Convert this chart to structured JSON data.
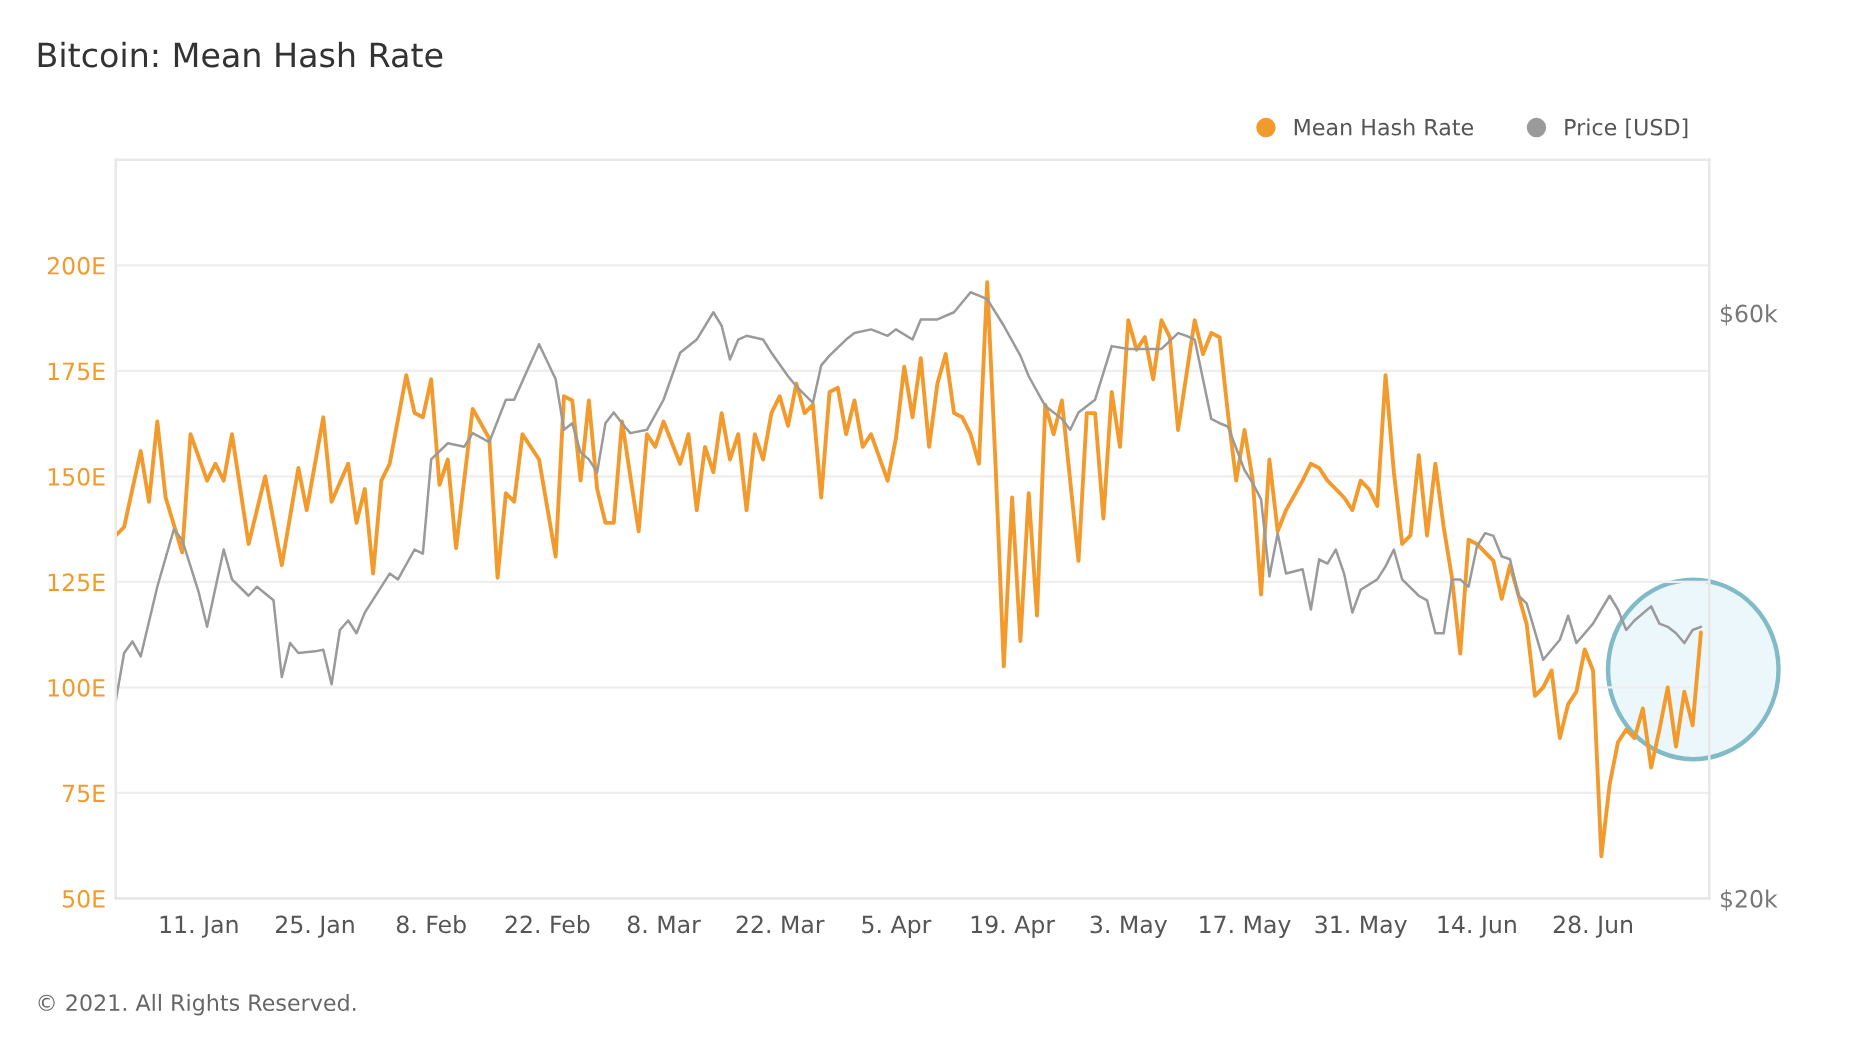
{
  "chart_data": {
    "type": "line",
    "title": "Bitcoin: Mean Hash Rate",
    "annotations": [
      "© 2021. All Rights Reserved."
    ],
    "xlim": [
      "2021-01-01",
      "2021-07-12"
    ],
    "xticks": [
      {
        "value": "2021-01-11",
        "label": "11. Jan"
      },
      {
        "value": "2021-01-25",
        "label": "25. Jan"
      },
      {
        "value": "2021-02-08",
        "label": "8. Feb"
      },
      {
        "value": "2021-02-22",
        "label": "22. Feb"
      },
      {
        "value": "2021-03-08",
        "label": "8. Mar"
      },
      {
        "value": "2021-03-22",
        "label": "22. Mar"
      },
      {
        "value": "2021-04-05",
        "label": "5. Apr"
      },
      {
        "value": "2021-04-19",
        "label": "19. Apr"
      },
      {
        "value": "2021-05-03",
        "label": "3. May"
      },
      {
        "value": "2021-05-17",
        "label": "17. May"
      },
      {
        "value": "2021-05-31",
        "label": "31. May"
      },
      {
        "value": "2021-06-14",
        "label": "14. Jun"
      },
      {
        "value": "2021-06-28",
        "label": "28. Jun"
      }
    ],
    "ylim": [
      50,
      225
    ],
    "yticks": [
      {
        "value": 50,
        "label": "50E"
      },
      {
        "value": 75,
        "label": "75E"
      },
      {
        "value": 100,
        "label": "100E"
      },
      {
        "value": 125,
        "label": "125E"
      },
      {
        "value": 150,
        "label": "150E"
      },
      {
        "value": 175,
        "label": "175E"
      },
      {
        "value": 200,
        "label": "200E"
      }
    ],
    "y2lim": [
      20000,
      80000
    ],
    "y2ticks": [
      {
        "value": 20000,
        "label": "$20k"
      },
      {
        "value": 60000,
        "label": "$60k"
      }
    ],
    "log": "y2",
    "grid": "y",
    "legend": "top right",
    "series": [
      {
        "name": "Mean Hash Rate",
        "color": "#f39a2d",
        "axis": "y",
        "x": [
          "2021-01-01",
          "2021-01-02",
          "2021-01-04",
          "2021-01-05",
          "2021-01-06",
          "2021-01-07",
          "2021-01-09",
          "2021-01-10",
          "2021-01-12",
          "2021-01-13",
          "2021-01-14",
          "2021-01-15",
          "2021-01-17",
          "2021-01-19",
          "2021-01-21",
          "2021-01-23",
          "2021-01-24",
          "2021-01-26",
          "2021-01-27",
          "2021-01-29",
          "2021-01-30",
          "2021-01-31",
          "2021-02-01",
          "2021-02-02",
          "2021-02-03",
          "2021-02-05",
          "2021-02-06",
          "2021-02-07",
          "2021-02-08",
          "2021-02-09",
          "2021-02-10",
          "2021-02-11",
          "2021-02-13",
          "2021-02-15",
          "2021-02-16",
          "2021-02-17",
          "2021-02-18",
          "2021-02-19",
          "2021-02-21",
          "2021-02-23",
          "2021-02-24",
          "2021-02-25",
          "2021-02-26",
          "2021-02-27",
          "2021-02-28",
          "2021-03-01",
          "2021-03-02",
          "2021-03-03",
          "2021-03-05",
          "2021-03-06",
          "2021-03-07",
          "2021-03-08",
          "2021-03-10",
          "2021-03-11",
          "2021-03-12",
          "2021-03-13",
          "2021-03-14",
          "2021-03-15",
          "2021-03-16",
          "2021-03-17",
          "2021-03-18",
          "2021-03-19",
          "2021-03-20",
          "2021-03-21",
          "2021-03-22",
          "2021-03-23",
          "2021-03-24",
          "2021-03-25",
          "2021-03-26",
          "2021-03-27",
          "2021-03-28",
          "2021-03-29",
          "2021-03-30",
          "2021-03-31",
          "2021-04-01",
          "2021-04-02",
          "2021-04-04",
          "2021-04-05",
          "2021-04-06",
          "2021-04-07",
          "2021-04-08",
          "2021-04-09",
          "2021-04-10",
          "2021-04-11",
          "2021-04-12",
          "2021-04-13",
          "2021-04-14",
          "2021-04-15",
          "2021-04-16",
          "2021-04-17",
          "2021-04-18",
          "2021-04-19",
          "2021-04-20",
          "2021-04-21",
          "2021-04-22",
          "2021-04-23",
          "2021-04-24",
          "2021-04-25",
          "2021-04-27",
          "2021-04-28",
          "2021-04-29",
          "2021-04-30",
          "2021-05-01",
          "2021-05-02",
          "2021-05-03",
          "2021-05-04",
          "2021-05-05",
          "2021-05-06",
          "2021-05-07",
          "2021-05-08",
          "2021-05-09",
          "2021-05-10",
          "2021-05-11",
          "2021-05-12",
          "2021-05-13",
          "2021-05-14",
          "2021-05-15",
          "2021-05-16",
          "2021-05-17",
          "2021-05-18",
          "2021-05-19",
          "2021-05-20",
          "2021-05-21",
          "2021-05-22",
          "2021-05-24",
          "2021-05-25",
          "2021-05-26",
          "2021-05-27",
          "2021-05-29",
          "2021-05-30",
          "2021-05-31",
          "2021-06-01",
          "2021-06-02",
          "2021-06-03",
          "2021-06-04",
          "2021-06-05",
          "2021-06-06",
          "2021-06-07",
          "2021-06-08",
          "2021-06-09",
          "2021-06-10",
          "2021-06-11",
          "2021-06-12",
          "2021-06-13",
          "2021-06-14",
          "2021-06-15",
          "2021-06-16",
          "2021-06-17",
          "2021-06-18",
          "2021-06-20",
          "2021-06-21",
          "2021-06-22",
          "2021-06-23",
          "2021-06-24",
          "2021-06-25",
          "2021-06-26",
          "2021-06-27",
          "2021-06-28",
          "2021-06-29",
          "2021-06-30",
          "2021-07-01",
          "2021-07-02",
          "2021-07-03",
          "2021-07-04",
          "2021-07-05",
          "2021-07-06",
          "2021-07-07",
          "2021-07-08",
          "2021-07-09",
          "2021-07-10",
          "2021-07-11"
        ],
        "values": [
          136,
          138,
          156,
          144,
          163,
          145,
          132,
          160,
          149,
          153,
          149,
          160,
          134,
          150,
          129,
          152,
          142,
          164,
          144,
          153,
          139,
          147,
          127,
          149,
          153,
          174,
          165,
          164,
          173,
          148,
          154,
          133,
          166,
          159,
          126,
          146,
          144,
          160,
          154,
          131,
          169,
          168,
          149,
          168,
          147,
          139,
          139,
          163,
          137,
          160,
          157,
          163,
          153,
          160,
          142,
          157,
          151,
          165,
          154,
          160,
          142,
          160,
          154,
          165,
          169,
          162,
          172,
          165,
          167,
          145,
          170,
          171,
          160,
          168,
          157,
          160,
          149,
          159,
          176,
          164,
          178,
          157,
          172,
          179,
          165,
          164,
          160,
          153,
          196,
          153,
          105,
          145,
          111,
          146,
          117,
          167,
          160,
          168,
          130,
          165,
          165,
          140,
          170,
          157,
          187,
          180,
          183,
          173,
          187,
          183,
          161,
          174,
          187,
          179,
          184,
          183,
          165,
          149,
          161,
          149,
          122,
          154,
          137,
          142,
          149,
          153,
          152,
          149,
          145,
          142,
          149,
          147,
          143,
          174,
          151,
          134,
          136,
          155,
          136,
          153,
          138,
          126,
          108,
          135,
          134,
          132,
          130,
          121,
          129,
          115,
          98,
          100,
          104,
          88,
          96,
          99,
          109,
          104,
          60,
          77,
          87,
          90,
          88,
          95,
          81,
          90,
          100,
          86,
          99,
          91,
          113
        ]
      },
      {
        "name": "Price [USD]",
        "color": "#9a9a9a",
        "axis": "y2",
        "x": [
          "2021-01-01",
          "2021-01-02",
          "2021-01-03",
          "2021-01-04",
          "2021-01-06",
          "2021-01-08",
          "2021-01-09",
          "2021-01-11",
          "2021-01-12",
          "2021-01-14",
          "2021-01-15",
          "2021-01-17",
          "2021-01-18",
          "2021-01-20",
          "2021-01-21",
          "2021-01-22",
          "2021-01-23",
          "2021-01-25",
          "2021-01-26",
          "2021-01-27",
          "2021-01-28",
          "2021-01-29",
          "2021-01-30",
          "2021-01-31",
          "2021-02-03",
          "2021-02-04",
          "2021-02-06",
          "2021-02-07",
          "2021-02-08",
          "2021-02-10",
          "2021-02-12",
          "2021-02-13",
          "2021-02-15",
          "2021-02-17",
          "2021-02-18",
          "2021-02-20",
          "2021-02-21",
          "2021-02-23",
          "2021-02-24",
          "2021-02-25",
          "2021-02-26",
          "2021-02-27",
          "2021-02-28",
          "2021-03-01",
          "2021-03-02",
          "2021-03-03",
          "2021-03-04",
          "2021-03-06",
          "2021-03-08",
          "2021-03-10",
          "2021-03-12",
          "2021-03-14",
          "2021-03-15",
          "2021-03-16",
          "2021-03-17",
          "2021-03-18",
          "2021-03-20",
          "2021-03-21",
          "2021-03-23",
          "2021-03-24",
          "2021-03-26",
          "2021-03-27",
          "2021-03-28",
          "2021-03-30",
          "2021-03-31",
          "2021-04-02",
          "2021-04-04",
          "2021-04-05",
          "2021-04-07",
          "2021-04-08",
          "2021-04-10",
          "2021-04-12",
          "2021-04-14",
          "2021-04-15",
          "2021-04-16",
          "2021-04-18",
          "2021-04-20",
          "2021-04-21",
          "2021-04-23",
          "2021-04-25",
          "2021-04-26",
          "2021-04-27",
          "2021-04-29",
          "2021-05-01",
          "2021-05-03",
          "2021-05-06",
          "2021-05-07",
          "2021-05-09",
          "2021-05-10",
          "2021-05-11",
          "2021-05-13",
          "2021-05-14",
          "2021-05-15",
          "2021-05-17",
          "2021-05-18",
          "2021-05-19",
          "2021-05-20",
          "2021-05-21",
          "2021-05-22",
          "2021-05-24",
          "2021-05-25",
          "2021-05-26",
          "2021-05-27",
          "2021-05-28",
          "2021-05-29",
          "2021-05-30",
          "2021-05-31",
          "2021-06-02",
          "2021-06-03",
          "2021-06-04",
          "2021-06-05",
          "2021-06-07",
          "2021-06-08",
          "2021-06-09",
          "2021-06-10",
          "2021-06-11",
          "2021-06-12",
          "2021-06-13",
          "2021-06-14",
          "2021-06-15",
          "2021-06-16",
          "2021-06-17",
          "2021-06-18",
          "2021-06-19",
          "2021-06-20",
          "2021-06-22",
          "2021-06-24",
          "2021-06-25",
          "2021-06-26",
          "2021-06-28",
          "2021-06-29",
          "2021-06-30",
          "2021-07-01",
          "2021-07-02",
          "2021-07-03",
          "2021-07-05",
          "2021-07-06",
          "2021-07-07",
          "2021-07-08",
          "2021-07-09",
          "2021-07-10",
          "2021-07-11"
        ],
        "values": [
          29000,
          31700,
          32400,
          31500,
          35900,
          40000,
          39200,
          35500,
          33300,
          38500,
          36400,
          35300,
          35900,
          35000,
          30300,
          32300,
          31700,
          31800,
          31900,
          29900,
          33100,
          33700,
          32900,
          34200,
          36800,
          36400,
          38500,
          38200,
          45600,
          47000,
          46700,
          47900,
          47100,
          51000,
          51000,
          54700,
          56600,
          53000,
          48200,
          48800,
          46200,
          45600,
          44500,
          48800,
          49800,
          48800,
          47900,
          48200,
          51000,
          55700,
          57100,
          60100,
          58600,
          55000,
          57100,
          57500,
          57100,
          55700,
          53300,
          52300,
          50700,
          54400,
          55400,
          57100,
          57800,
          58200,
          57500,
          58200,
          57100,
          59300,
          59300,
          60100,
          62400,
          62000,
          61600,
          58600,
          55400,
          53300,
          50400,
          49200,
          48200,
          49800,
          51000,
          56400,
          56100,
          56100,
          56100,
          57800,
          57500,
          57100,
          49200,
          48800,
          48500,
          44700,
          43600,
          42300,
          36600,
          39700,
          36800,
          37100,
          34400,
          37800,
          37500,
          38500,
          36800,
          34200,
          35700,
          36400,
          37300,
          38500,
          36400,
          35300,
          35000,
          32900,
          32900,
          36400,
          36400,
          35900,
          38700,
          39700,
          39500,
          38000,
          37800,
          35300,
          34800,
          31300,
          32500,
          34000,
          32300,
          33500,
          34400,
          35300,
          34400,
          33100,
          33700,
          34600,
          33500,
          33300,
          32900,
          32300,
          33100,
          33300
        ]
      }
    ]
  }
}
